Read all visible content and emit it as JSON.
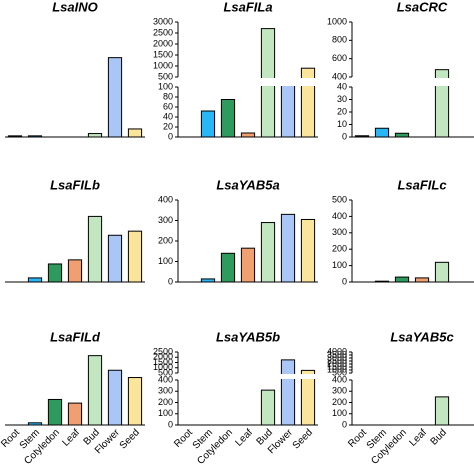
{
  "chart_data": [
    {
      "type": "bar",
      "title": "LsaINO",
      "values": [
        1,
        1,
        0,
        0,
        3,
        69,
        7
      ],
      "colors": [
        "#222222",
        "#29b6f6",
        "#2e9a5e",
        "#f0a070",
        "#c2e6bf",
        "#a9c6f7",
        "#fbe59a"
      ],
      "ylim": [
        0,
        100
      ]
    },
    {
      "type": "bar",
      "title": "LsaFILa",
      "values": [
        0,
        52,
        75,
        8,
        2700,
        480,
        900
      ],
      "colors": [
        "#222222",
        "#29b6f6",
        "#2e9a5e",
        "#f0a070",
        "#c2e6bf",
        "#a9c6f7",
        "#fbe59a"
      ],
      "ylim": [
        0,
        100
      ],
      "yticks": [
        0,
        20,
        40,
        60,
        80,
        100
      ],
      "break": {
        "ylim": [
          500,
          3000
        ],
        "yticks": [
          500,
          1000,
          1500,
          2000,
          2500,
          3000
        ]
      }
    },
    {
      "type": "bar",
      "title": "LsaCRC",
      "values": [
        1,
        7,
        3,
        0,
        480
      ],
      "colors": [
        "#222222",
        "#29b6f6",
        "#2e9a5e",
        "#f0a070",
        "#c2e6bf"
      ],
      "ylim": [
        0,
        40
      ],
      "yticks": [
        0,
        10,
        20,
        30,
        40
      ],
      "break": {
        "ylim": [
          400,
          1000
        ],
        "yticks": [
          400,
          600,
          800,
          1000
        ]
      }
    },
    {
      "type": "bar",
      "title": "LsaFILb",
      "values": [
        0,
        5,
        22,
        27,
        80,
        57,
        62
      ],
      "colors": [
        "#222222",
        "#29b6f6",
        "#2e9a5e",
        "#f0a070",
        "#c2e6bf",
        "#a9c6f7",
        "#fbe59a"
      ],
      "ylim": [
        0,
        100
      ]
    },
    {
      "type": "bar",
      "title": "LsaYAB5a",
      "values": [
        0,
        15,
        140,
        165,
        290,
        330,
        305
      ],
      "colors": [
        "#222222",
        "#29b6f6",
        "#2e9a5e",
        "#f0a070",
        "#c2e6bf",
        "#a9c6f7",
        "#fbe59a"
      ],
      "ylim": [
        0,
        400
      ],
      "yticks": [
        0,
        100,
        200,
        300,
        400
      ]
    },
    {
      "type": "bar",
      "title": "LsaFILc",
      "values": [
        0,
        5,
        30,
        25,
        120
      ],
      "colors": [
        "#222222",
        "#29b6f6",
        "#2e9a5e",
        "#f0a070",
        "#c2e6bf"
      ],
      "ylim": [
        0,
        500
      ],
      "yticks": [
        0,
        100,
        200,
        300,
        400,
        500
      ]
    },
    {
      "type": "bar",
      "title": "LsaFILd",
      "categories": [
        "Root",
        "Stem",
        "Cotyledon",
        "Leaf",
        "Bud",
        "Flower",
        "Seed"
      ],
      "values": [
        0,
        3,
        35,
        30,
        95,
        75,
        65
      ],
      "colors": [
        "#222222",
        "#29b6f6",
        "#2e9a5e",
        "#f0a070",
        "#c2e6bf",
        "#a9c6f7",
        "#fbe59a"
      ],
      "ylim": [
        0,
        100
      ]
    },
    {
      "type": "bar",
      "title": "LsaYAB5b",
      "categories": [
        "Root",
        "Stem",
        "Cotyledon",
        "Leaf",
        "Bud",
        "Flower",
        "Seed"
      ],
      "values": [
        0,
        0,
        0,
        0,
        310,
        1750,
        750
      ],
      "colors": [
        "#222222",
        "#29b6f6",
        "#2e9a5e",
        "#f0a070",
        "#c2e6bf",
        "#a9c6f7",
        "#fbe59a"
      ],
      "ylim": [
        0,
        400
      ],
      "yticks": [
        0,
        100,
        200,
        300,
        400
      ],
      "break": {
        "ylim": [
          500,
          2500
        ],
        "yticks": [
          500,
          1000,
          1500,
          2000,
          2500
        ]
      }
    },
    {
      "type": "bar",
      "title": "LsaYAB5c",
      "categories": [
        "Root",
        "Stem",
        "Cotyledon",
        "Leaf",
        "Bud"
      ],
      "values": [
        0,
        0,
        0,
        0,
        250
      ],
      "colors": [
        "#222222",
        "#29b6f6",
        "#2e9a5e",
        "#f0a070",
        "#c2e6bf"
      ],
      "ylim": [
        0,
        400
      ],
      "yticks": [
        0,
        100,
        200,
        300,
        400
      ],
      "break": {
        "ylim": [
          500,
          4000
        ],
        "yticks": [
          500,
          1000,
          1500,
          2000,
          2500,
          3000,
          3500,
          4000
        ]
      }
    }
  ]
}
